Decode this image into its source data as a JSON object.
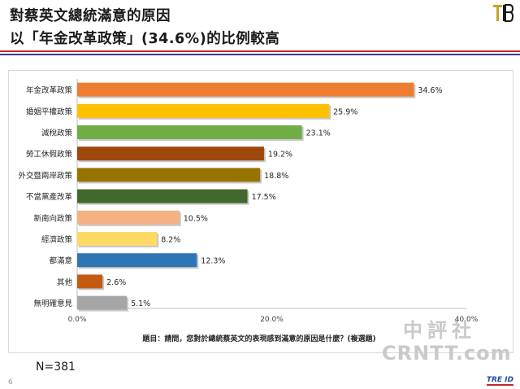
{
  "header": {
    "title_line1": "對蔡英文總統滿意的原因",
    "title_line2": "以「年金改革政策」(34.6%)的比例較高"
  },
  "sample": {
    "n_label": "N=381"
  },
  "page_number": "6",
  "watermark": {
    "line1": "中評社",
    "line2": "CRNTT.com"
  },
  "brand": {
    "text": "TRE ID"
  },
  "chart_data": {
    "type": "bar",
    "orientation": "horizontal",
    "categories": [
      "年金改革政策",
      "婚姻平權政策",
      "減稅政策",
      "勞工休假政策",
      "外交暨兩岸政策",
      "不當黨產改革",
      "新南向政策",
      "經濟政策",
      "都滿意",
      "其他",
      "無明確意見"
    ],
    "values": [
      34.6,
      25.9,
      23.1,
      19.2,
      18.8,
      17.5,
      10.5,
      8.2,
      12.3,
      2.6,
      5.1
    ],
    "value_labels": [
      "34.6%",
      "25.9%",
      "23.1%",
      "19.2%",
      "18.8%",
      "17.5%",
      "10.5%",
      "8.2%",
      "12.3%",
      "2.6%",
      "5.1%"
    ],
    "colors": [
      "#ed7d31",
      "#ffc000",
      "#70ad47",
      "#9e480e",
      "#997300",
      "#43682b",
      "#f4b183",
      "#ffd966",
      "#2e75b6",
      "#c55a11",
      "#a6a6a6"
    ],
    "xlim": [
      0,
      40
    ],
    "xticks": [
      "0.0%",
      "20.0%",
      "40.0%"
    ],
    "xtick_values": [
      0,
      20,
      40
    ],
    "note": "題目：請問，您對於總統蔡英文的表現感到滿意的原因是什麼？(複選題)",
    "grid": false
  }
}
